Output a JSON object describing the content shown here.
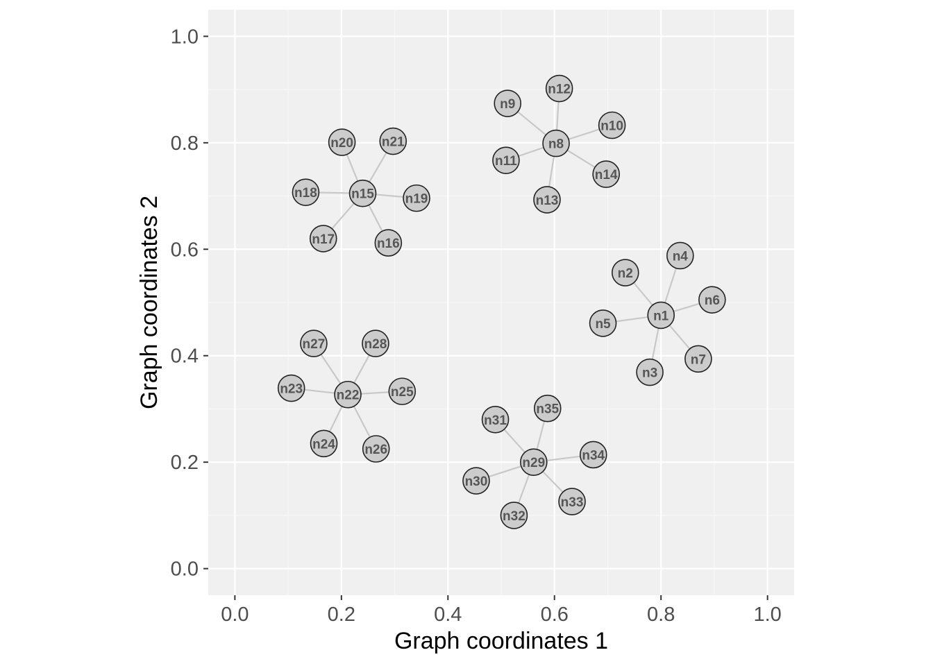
{
  "chart_data": {
    "type": "scatter",
    "subtype": "network-graph",
    "title": "",
    "xlabel": "Graph coordinates 1",
    "ylabel": "Graph coordinates 2",
    "xlim": [
      -0.05,
      1.05
    ],
    "ylim": [
      -0.05,
      1.05
    ],
    "xticks": [
      0.0,
      0.2,
      0.4,
      0.6,
      0.8,
      1.0
    ],
    "yticks": [
      0.0,
      0.2,
      0.4,
      0.6,
      0.8,
      1.0
    ],
    "xtick_labels": [
      "0.0",
      "0.2",
      "0.4",
      "0.6",
      "0.8",
      "1.0"
    ],
    "ytick_labels": [
      "0.0",
      "0.2",
      "0.4",
      "0.6",
      "0.8",
      "1.0"
    ],
    "grid": true,
    "colors": {
      "panel_background": "#f0f0f0",
      "grid_major": "#ffffff",
      "grid_minor": "#f7f7f7",
      "node_fill": "#cccccc",
      "node_stroke": "#222222",
      "edge": "#c8c8c8",
      "node_label": "#555555"
    },
    "nodes": [
      {
        "id": "n1",
        "x": 0.8,
        "y": 0.476
      },
      {
        "id": "n2",
        "x": 0.733,
        "y": 0.556
      },
      {
        "id": "n3",
        "x": 0.779,
        "y": 0.369
      },
      {
        "id": "n4",
        "x": 0.836,
        "y": 0.588
      },
      {
        "id": "n5",
        "x": 0.691,
        "y": 0.461
      },
      {
        "id": "n6",
        "x": 0.896,
        "y": 0.505
      },
      {
        "id": "n7",
        "x": 0.87,
        "y": 0.394
      },
      {
        "id": "n8",
        "x": 0.603,
        "y": 0.799
      },
      {
        "id": "n9",
        "x": 0.512,
        "y": 0.874
      },
      {
        "id": "n10",
        "x": 0.708,
        "y": 0.833
      },
      {
        "id": "n11",
        "x": 0.509,
        "y": 0.767
      },
      {
        "id": "n12",
        "x": 0.609,
        "y": 0.902
      },
      {
        "id": "n13",
        "x": 0.586,
        "y": 0.693
      },
      {
        "id": "n14",
        "x": 0.697,
        "y": 0.741
      },
      {
        "id": "n15",
        "x": 0.24,
        "y": 0.705
      },
      {
        "id": "n16",
        "x": 0.288,
        "y": 0.612
      },
      {
        "id": "n17",
        "x": 0.166,
        "y": 0.62
      },
      {
        "id": "n18",
        "x": 0.133,
        "y": 0.707
      },
      {
        "id": "n19",
        "x": 0.341,
        "y": 0.696
      },
      {
        "id": "n20",
        "x": 0.201,
        "y": 0.801
      },
      {
        "id": "n21",
        "x": 0.297,
        "y": 0.803
      },
      {
        "id": "n22",
        "x": 0.212,
        "y": 0.327
      },
      {
        "id": "n23",
        "x": 0.106,
        "y": 0.339
      },
      {
        "id": "n24",
        "x": 0.167,
        "y": 0.235
      },
      {
        "id": "n25",
        "x": 0.314,
        "y": 0.333
      },
      {
        "id": "n26",
        "x": 0.265,
        "y": 0.225
      },
      {
        "id": "n27",
        "x": 0.148,
        "y": 0.423
      },
      {
        "id": "n28",
        "x": 0.264,
        "y": 0.423
      },
      {
        "id": "n29",
        "x": 0.561,
        "y": 0.2
      },
      {
        "id": "n30",
        "x": 0.453,
        "y": 0.165
      },
      {
        "id": "n31",
        "x": 0.489,
        "y": 0.28
      },
      {
        "id": "n32",
        "x": 0.524,
        "y": 0.1
      },
      {
        "id": "n33",
        "x": 0.633,
        "y": 0.126
      },
      {
        "id": "n34",
        "x": 0.673,
        "y": 0.214
      },
      {
        "id": "n35",
        "x": 0.587,
        "y": 0.301
      }
    ],
    "edges": [
      [
        "n1",
        "n2"
      ],
      [
        "n1",
        "n3"
      ],
      [
        "n1",
        "n4"
      ],
      [
        "n1",
        "n5"
      ],
      [
        "n1",
        "n6"
      ],
      [
        "n1",
        "n7"
      ],
      [
        "n8",
        "n9"
      ],
      [
        "n8",
        "n10"
      ],
      [
        "n8",
        "n11"
      ],
      [
        "n8",
        "n12"
      ],
      [
        "n8",
        "n13"
      ],
      [
        "n8",
        "n14"
      ],
      [
        "n15",
        "n16"
      ],
      [
        "n15",
        "n17"
      ],
      [
        "n15",
        "n18"
      ],
      [
        "n15",
        "n19"
      ],
      [
        "n15",
        "n20"
      ],
      [
        "n15",
        "n21"
      ],
      [
        "n22",
        "n23"
      ],
      [
        "n22",
        "n24"
      ],
      [
        "n22",
        "n25"
      ],
      [
        "n22",
        "n26"
      ],
      [
        "n22",
        "n27"
      ],
      [
        "n22",
        "n28"
      ],
      [
        "n29",
        "n30"
      ],
      [
        "n29",
        "n31"
      ],
      [
        "n29",
        "n32"
      ],
      [
        "n29",
        "n33"
      ],
      [
        "n29",
        "n34"
      ],
      [
        "n29",
        "n35"
      ]
    ]
  }
}
